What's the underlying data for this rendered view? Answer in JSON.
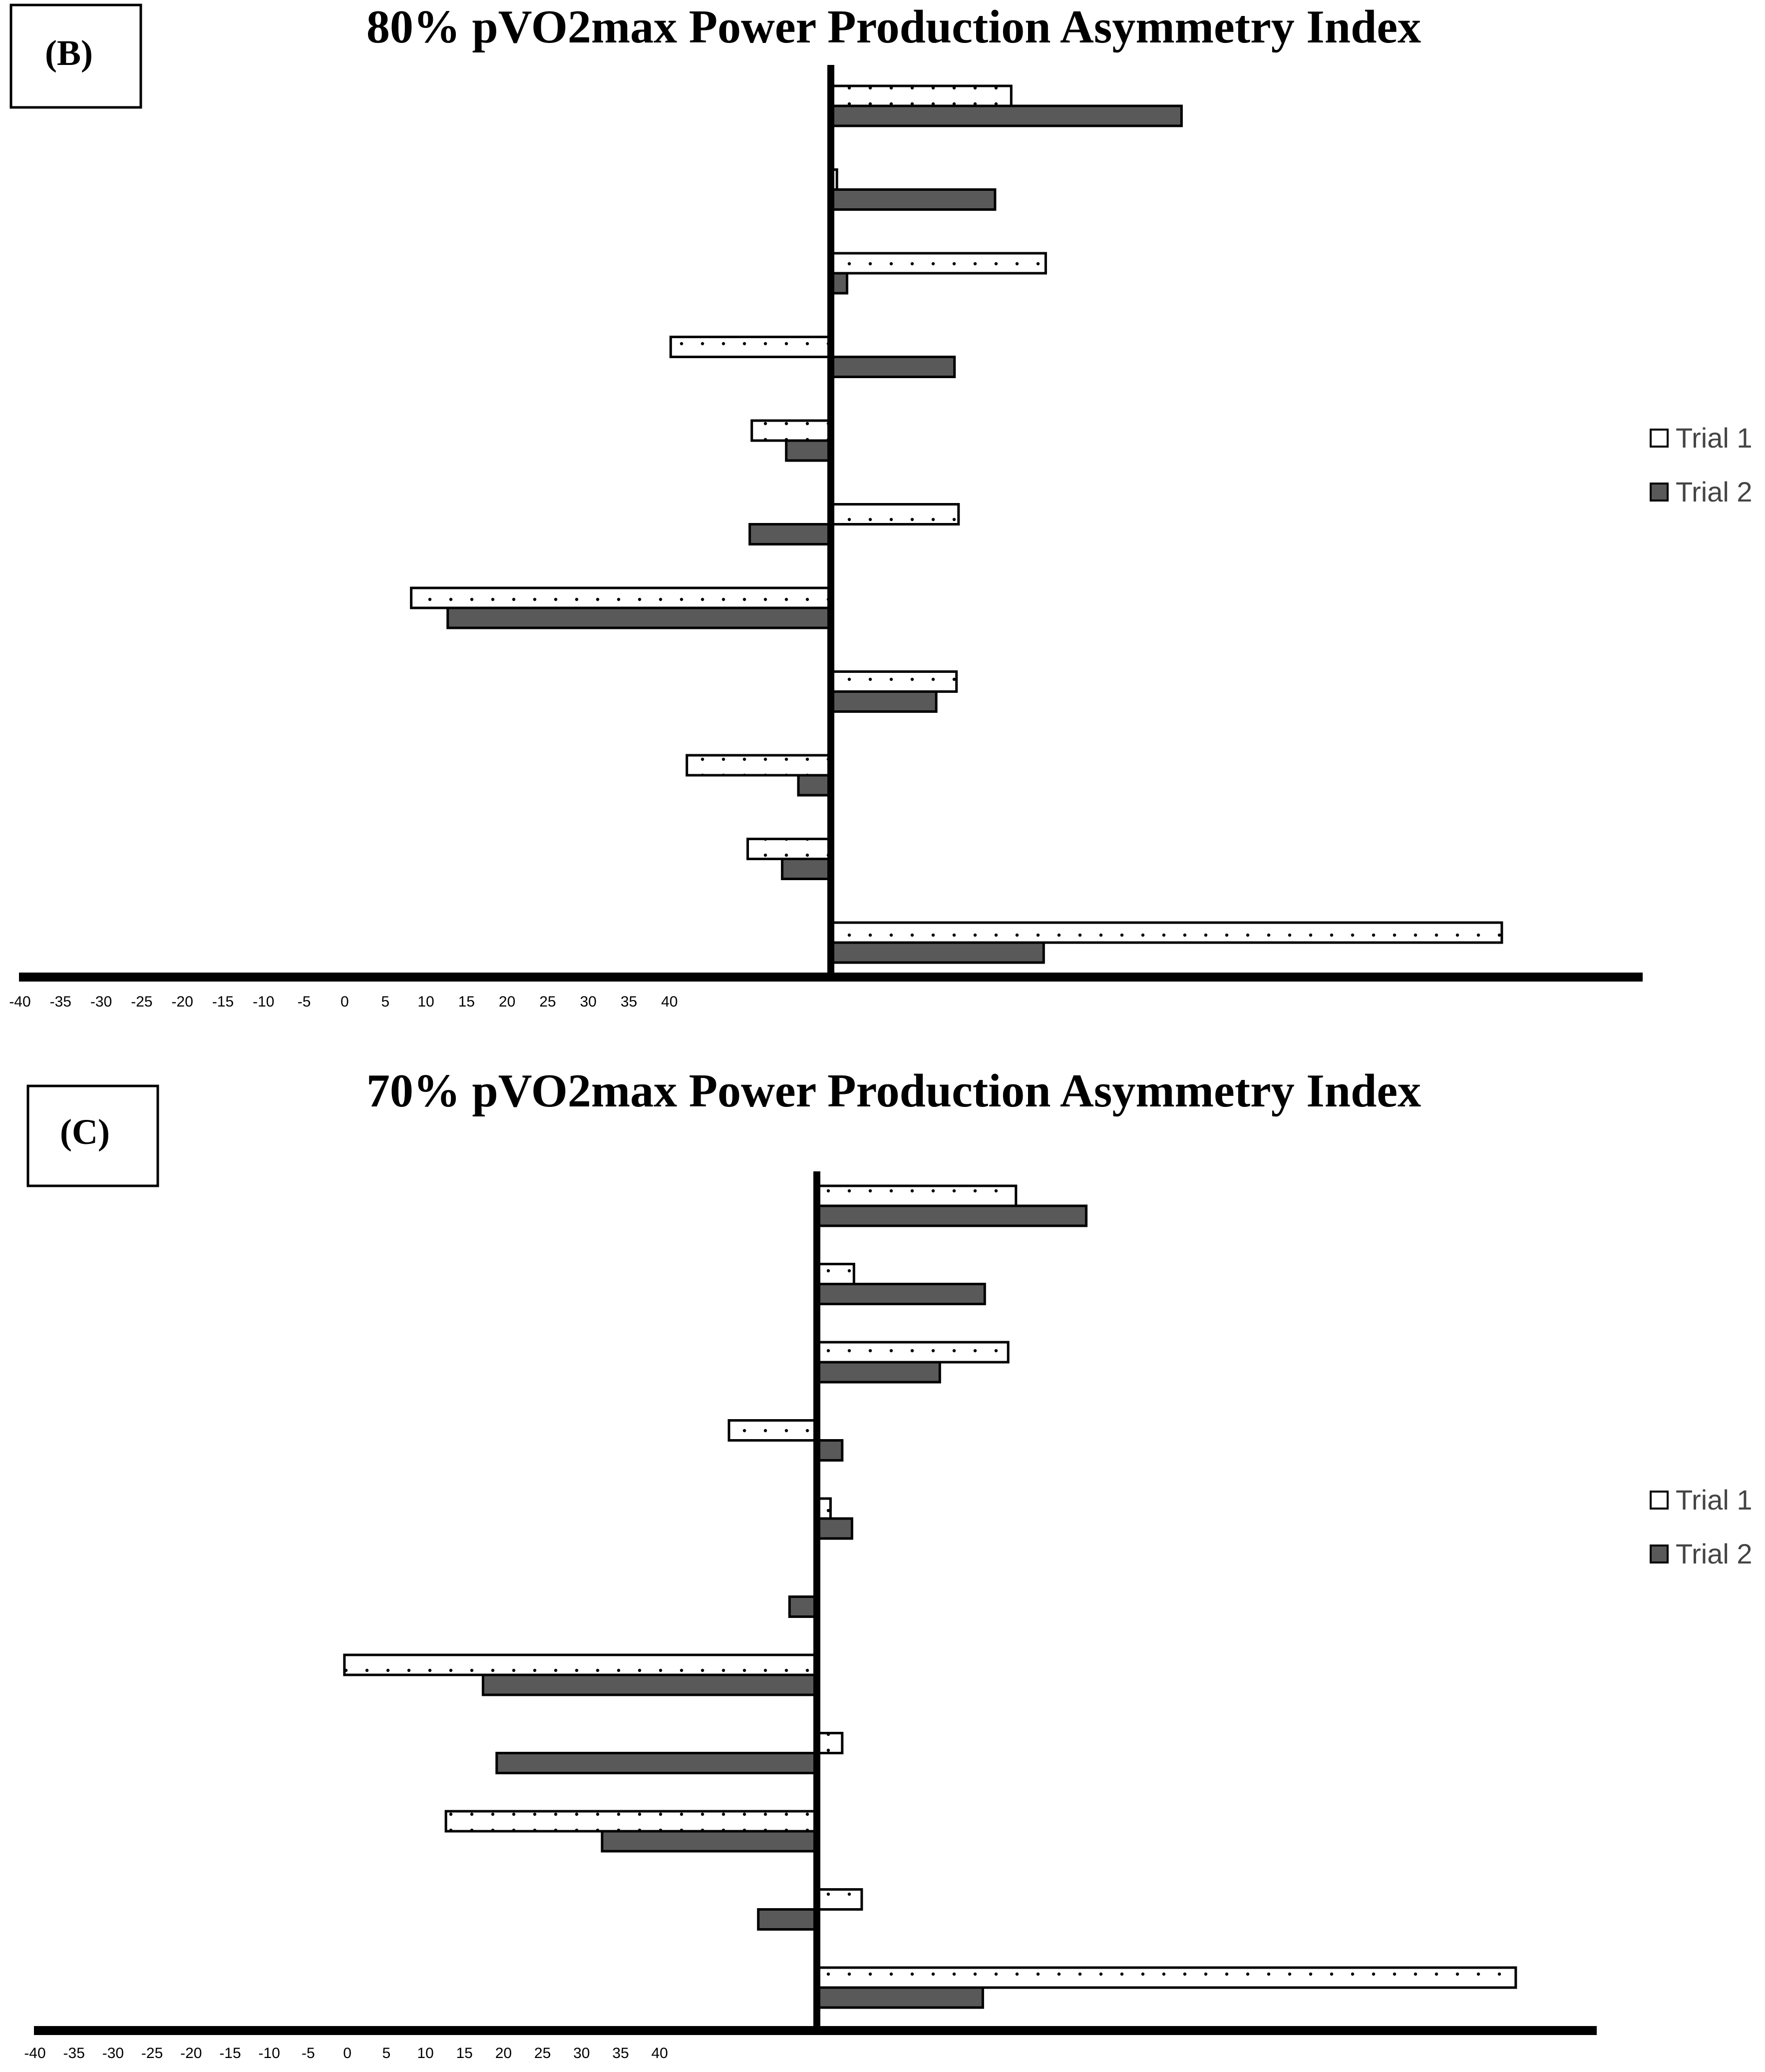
{
  "chart_data": [
    {
      "type": "bar",
      "orientation": "horizontal",
      "panel_label": "(B)",
      "title": "80% pVO2max Power Production Asymmetry Index",
      "xlim": [
        -40,
        40
      ],
      "xticks": [
        -40,
        -35,
        -30,
        -25,
        -20,
        -15,
        -10,
        -5,
        0,
        5,
        10,
        15,
        20,
        25,
        30,
        35,
        40
      ],
      "xlabel": "",
      "ylabel": "",
      "grid": false,
      "legend_position": "right",
      "series": [
        {
          "name": "Trial 1",
          "pattern": "dotted-white",
          "values": [
            8.9,
            0.3,
            10.6,
            -7.9,
            -3.9,
            6.3,
            -20.7,
            6.2,
            -7.1,
            -4.1,
            33.1
          ]
        },
        {
          "name": "Trial 2",
          "pattern": "solid-dark",
          "values": [
            17.3,
            8.1,
            0.8,
            6.1,
            -2.2,
            -4.0,
            -18.9,
            5.2,
            -1.6,
            -2.4,
            10.5
          ]
        }
      ]
    },
    {
      "type": "bar",
      "orientation": "horizontal",
      "panel_label": "(C)",
      "title": "70% pVO2max Power Production Asymmetry Index",
      "xlim": [
        -40,
        40
      ],
      "xticks": [
        -40,
        -35,
        -30,
        -25,
        -20,
        -15,
        -10,
        -5,
        0,
        5,
        10,
        15,
        20,
        25,
        30,
        35,
        40
      ],
      "xlabel": "",
      "ylabel": "",
      "grid": false,
      "legend_position": "right",
      "series": [
        {
          "name": "Trial 1",
          "pattern": "dotted-white",
          "values": [
            10.2,
            1.9,
            9.8,
            -4.5,
            0.7,
            0.0,
            -24.2,
            1.3,
            -19.0,
            2.3,
            35.8
          ]
        },
        {
          "name": "Trial 2",
          "pattern": "solid-dark",
          "values": [
            13.8,
            8.6,
            6.3,
            1.3,
            1.8,
            -1.4,
            -17.1,
            -16.4,
            -11.0,
            -3.0,
            8.5
          ]
        }
      ]
    }
  ],
  "colors": {
    "axis": "#000000",
    "trial1_fill": "#ffffff",
    "trial1_dots": "#000000",
    "trial2_fill": "#595959",
    "bar_stroke": "#000000"
  }
}
